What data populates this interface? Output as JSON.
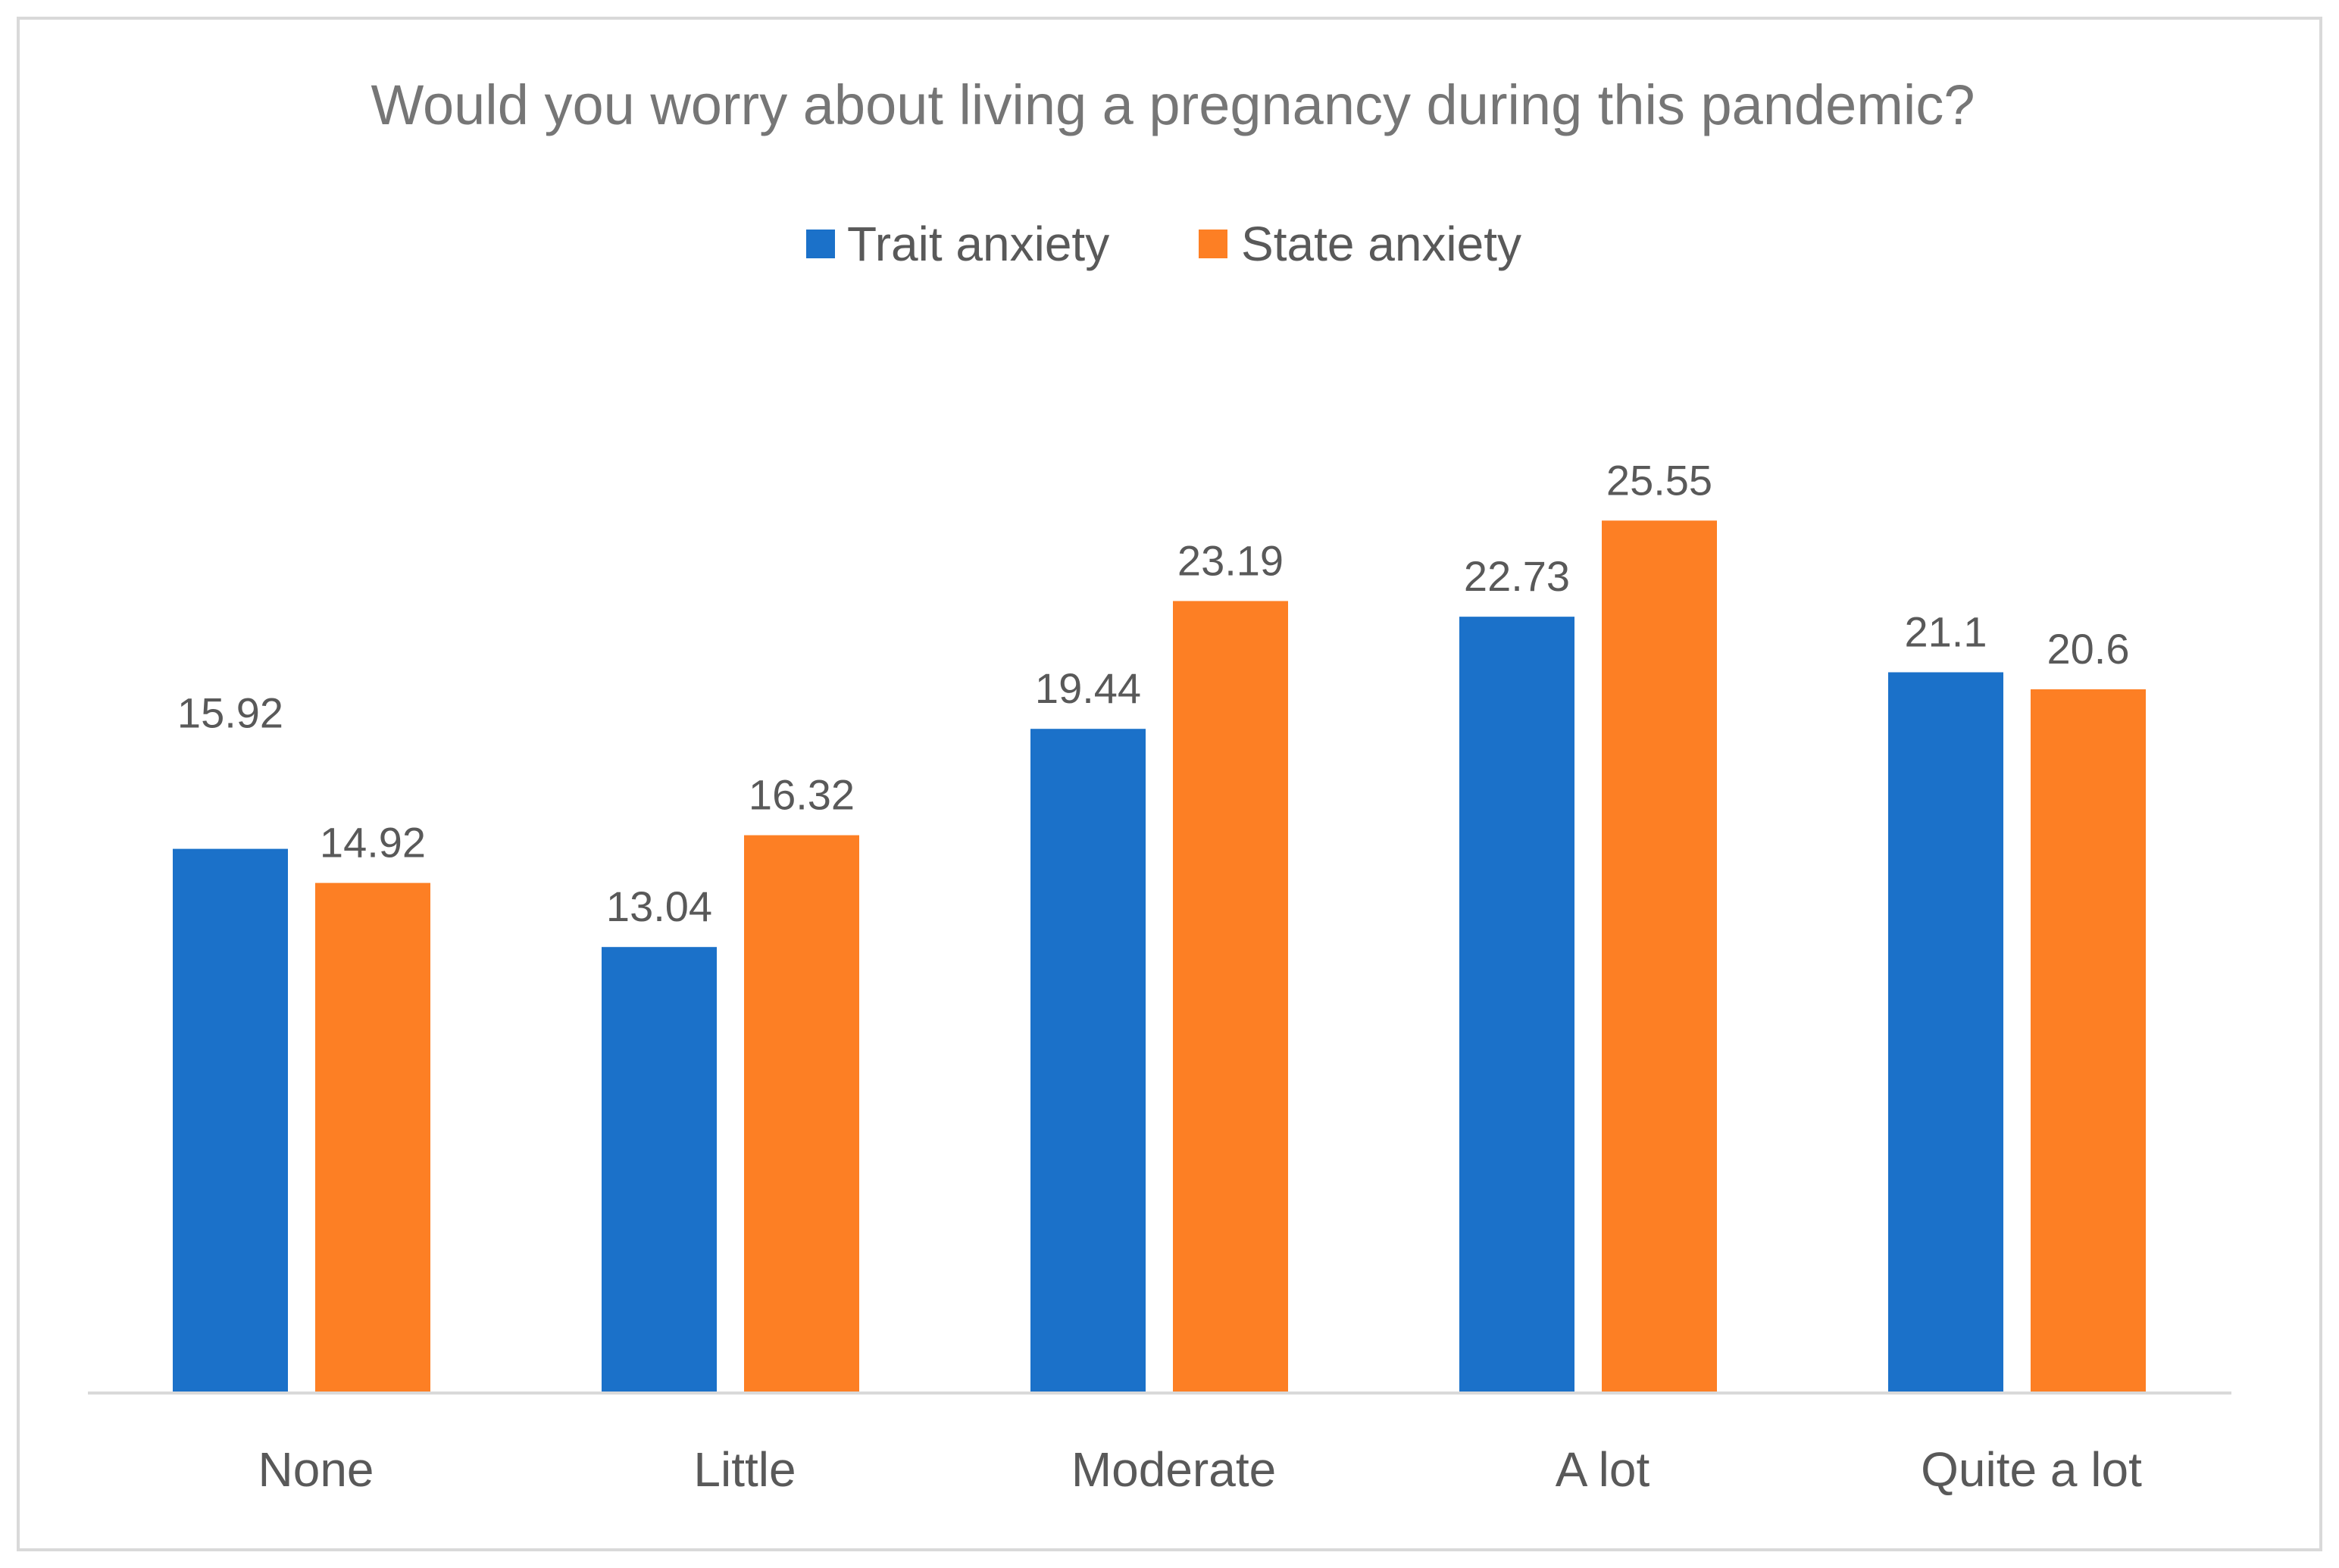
{
  "chart_data": {
    "type": "bar",
    "title": "Would you worry about living a pregnancy during this pandemic?",
    "xlabel": "",
    "ylabel": "",
    "categories": [
      "None",
      "Little",
      "Moderate",
      "A lot",
      "Quite a lot"
    ],
    "series": [
      {
        "name": "Trait anxiety",
        "color": "#1b71c9",
        "values": [
          15.92,
          13.04,
          19.44,
          22.73,
          21.1
        ],
        "labels": [
          "15.92",
          "13.04",
          "19.44",
          "22.73",
          "21.1"
        ]
      },
      {
        "name": "State anxiety",
        "color": "#fd7f24",
        "values": [
          14.92,
          16.32,
          23.19,
          25.55,
          20.6
        ],
        "labels": [
          "14.92",
          "16.32",
          "23.19",
          "25.55",
          "20.6"
        ]
      }
    ],
    "ylim": [
      0,
      30
    ],
    "grid": false,
    "legend": "top-center",
    "axis_color": "#d9d9d9"
  }
}
